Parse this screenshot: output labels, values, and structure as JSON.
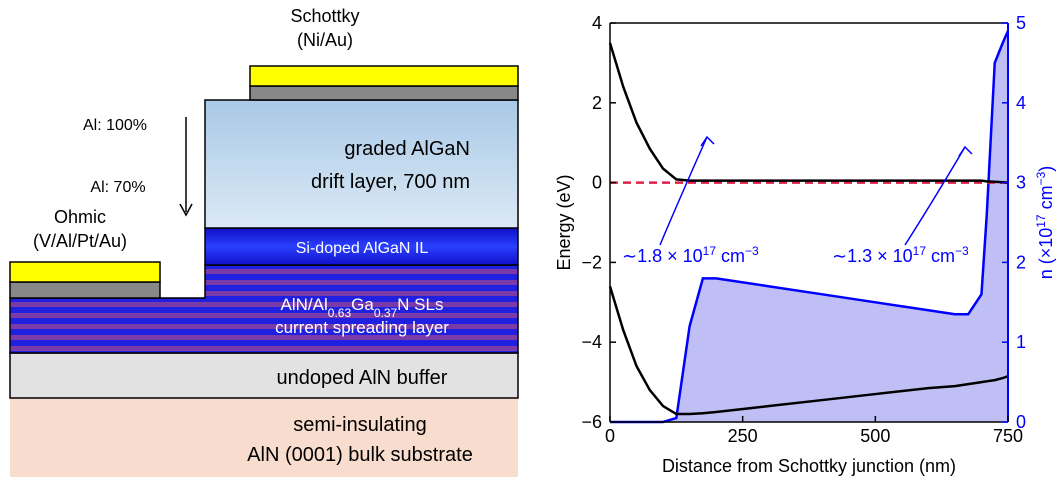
{
  "diagram": {
    "schottky": [
      "Schottky",
      "(Ni/Au)"
    ],
    "al_top": "Al: 100%",
    "al_bottom": "Al: 70%",
    "drift": [
      "graded AlGaN",
      "drift layer, 700 nm"
    ],
    "ohmic": [
      "Ohmic",
      "(V/Al/Pt/Au)"
    ],
    "interlayer": "Si-doped AlGaN IL",
    "superlattice": [
      {
        "text": "AlN/Al"
      },
      {
        "text": "0.63",
        "sub": true
      },
      {
        "text": "Ga"
      },
      {
        "text": "0.37",
        "sub": true
      },
      {
        "text": "N SLs"
      }
    ],
    "spreading": "current spreading layer",
    "buffer": "undoped AlN buffer",
    "substrate": [
      "semi-insulating",
      "AlN (0001) bulk substrate"
    ]
  },
  "chart_data": {
    "type": "line",
    "xlabel": "Distance from Schottky junction (nm)",
    "ylabel": "Energy (eV)",
    "y2label": [
      {
        "text": "n (×10"
      },
      {
        "text": "17",
        "sup": true
      },
      {
        "text": " cm"
      },
      {
        "text": "−3",
        "sup": true
      },
      {
        "text": ")"
      }
    ],
    "x": [
      0,
      25,
      50,
      75,
      100,
      125,
      150,
      175,
      200,
      300,
      400,
      500,
      600,
      650,
      675,
      700,
      710,
      725,
      740,
      750
    ],
    "xlim": [
      0,
      750
    ],
    "xticks": [
      0,
      250,
      500,
      750
    ],
    "ylim": [
      -6,
      4
    ],
    "yticks": [
      {
        "value": -6,
        "label": "−6"
      },
      {
        "value": -4,
        "label": "−4"
      },
      {
        "value": -2,
        "label": "−2"
      },
      0,
      2,
      4
    ],
    "y2lim": [
      0,
      5
    ],
    "y2ticks": [
      0,
      1,
      2,
      3,
      4,
      5
    ],
    "series": [
      {
        "color": "#000000",
        "values": [
          3.5,
          2.4,
          1.5,
          0.85,
          0.35,
          0.08,
          0.05,
          0.05,
          0.05,
          0.05,
          0.05,
          0.05,
          0.05,
          0.05,
          0.05,
          0.05,
          0.03,
          0.02,
          0.01,
          0.0
        ]
      },
      {
        "color": "#000000",
        "values": [
          -2.6,
          -3.7,
          -4.6,
          -5.2,
          -5.6,
          -5.8,
          -5.8,
          -5.78,
          -5.75,
          -5.6,
          -5.45,
          -5.3,
          -5.15,
          -5.1,
          -5.05,
          -5.0,
          -4.98,
          -4.95,
          -4.9,
          -4.85
        ]
      },
      {
        "color": "#e0204a",
        "dashed": true,
        "values": [
          0,
          0,
          0,
          0,
          0,
          0,
          0,
          0,
          0,
          0,
          0,
          0,
          0,
          0,
          0,
          0,
          0,
          0,
          0,
          0
        ]
      },
      {
        "color": "#0000ff",
        "axis": "y2",
        "fill": "#b8b8f4",
        "values": [
          0,
          0,
          0,
          0,
          0,
          0.05,
          1.2,
          1.8,
          1.8,
          1.7,
          1.6,
          1.5,
          1.4,
          1.35,
          1.35,
          1.6,
          2.6,
          4.5,
          4.75,
          4.9
        ]
      }
    ],
    "annotations": [
      [
        {
          "text": "∼1.8 × 10"
        },
        {
          "text": "17",
          "sup": true
        },
        {
          "text": " cm"
        },
        {
          "text": "−3",
          "sup": true
        }
      ],
      [
        {
          "text": "∼1.3 × 10"
        },
        {
          "text": "17",
          "sup": true
        },
        {
          "text": " cm"
        },
        {
          "text": "−3",
          "sup": true
        }
      ]
    ]
  }
}
